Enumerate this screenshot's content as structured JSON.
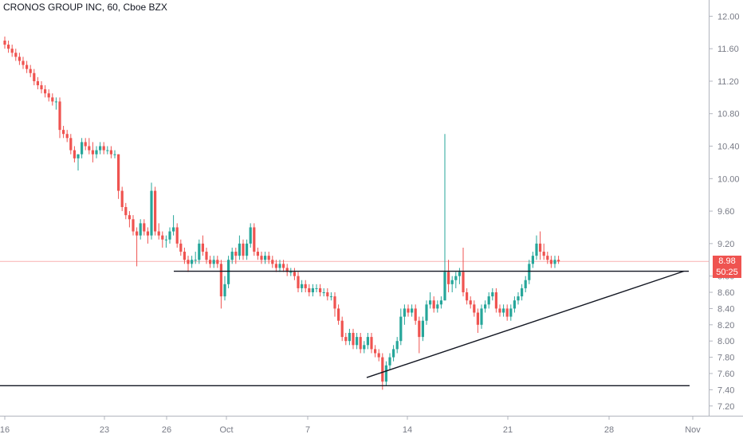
{
  "title": "CRONOS GROUP INC, 60, Cboe BZX",
  "last_price_label": "8.98",
  "countdown_label": "50:25",
  "colors": {
    "up": "#26a69a",
    "down": "#ef5350",
    "line": "#131722",
    "axis": "#787b86"
  },
  "chart_data": {
    "type": "candlestick",
    "ylim": [
      7.08,
      12.2
    ],
    "y_ticks": [
      12.0,
      11.6,
      11.2,
      10.8,
      10.4,
      10.0,
      9.6,
      9.2,
      8.8,
      8.6,
      8.4,
      8.2,
      8.0,
      7.8,
      7.6,
      7.4,
      7.2
    ],
    "y_tick_labels": [
      "12.00",
      "11.60",
      "11.20",
      "10.80",
      "10.40",
      "10.00",
      "9.60",
      "9.20",
      "8.80",
      "8.60",
      "8.40",
      "8.20",
      "8.00",
      "7.80",
      "7.60",
      "7.40",
      "7.20"
    ],
    "x_ticks": [
      "16",
      "23",
      "26",
      "Oct",
      "7",
      "14",
      "21",
      "28",
      "Nov"
    ],
    "last_price": 8.98,
    "horizontal_lines": [
      8.86,
      7.45
    ],
    "trend_line": {
      "from": {
        "bar": 92,
        "price": 7.55
      },
      "to": {
        "bar": 171,
        "price": 8.86
      }
    },
    "candles": [
      [
        11.7,
        11.75,
        11.6,
        11.65
      ],
      [
        11.65,
        11.7,
        11.55,
        11.6
      ],
      [
        11.6,
        11.65,
        11.5,
        11.55
      ],
      [
        11.55,
        11.6,
        11.45,
        11.5
      ],
      [
        11.5,
        11.55,
        11.4,
        11.45
      ],
      [
        11.45,
        11.5,
        11.35,
        11.4
      ],
      [
        11.4,
        11.45,
        11.3,
        11.35
      ],
      [
        11.35,
        11.4,
        11.25,
        11.3
      ],
      [
        11.3,
        11.35,
        11.15,
        11.2
      ],
      [
        11.2,
        11.25,
        11.1,
        11.15
      ],
      [
        11.15,
        11.2,
        11.05,
        11.1
      ],
      [
        11.1,
        11.15,
        11.0,
        11.05
      ],
      [
        11.05,
        11.1,
        10.95,
        11.0
      ],
      [
        11.0,
        11.05,
        10.9,
        10.95
      ],
      [
        10.95,
        11.0,
        10.85,
        10.95
      ],
      [
        10.95,
        11.0,
        10.5,
        10.6
      ],
      [
        10.6,
        10.65,
        10.5,
        10.55
      ],
      [
        10.55,
        10.6,
        10.45,
        10.5
      ],
      [
        10.5,
        10.55,
        10.3,
        10.35
      ],
      [
        10.35,
        10.4,
        10.2,
        10.25
      ],
      [
        10.25,
        10.3,
        10.1,
        10.3
      ],
      [
        10.3,
        10.5,
        10.25,
        10.45
      ],
      [
        10.45,
        10.5,
        10.35,
        10.4
      ],
      [
        10.4,
        10.5,
        10.3,
        10.35
      ],
      [
        10.35,
        10.45,
        10.2,
        10.3
      ],
      [
        10.3,
        10.4,
        10.25,
        10.35
      ],
      [
        10.35,
        10.45,
        10.3,
        10.4
      ],
      [
        10.4,
        10.45,
        10.3,
        10.35
      ],
      [
        10.35,
        10.4,
        10.3,
        10.35
      ],
      [
        10.35,
        10.4,
        10.25,
        10.3
      ],
      [
        10.3,
        10.35,
        10.25,
        10.3
      ],
      [
        10.3,
        10.3,
        9.75,
        9.85
      ],
      [
        9.85,
        9.9,
        9.6,
        9.65
      ],
      [
        9.65,
        9.7,
        9.5,
        9.55
      ],
      [
        9.55,
        9.6,
        9.4,
        9.5
      ],
      [
        9.5,
        9.55,
        9.3,
        9.35
      ],
      [
        9.35,
        9.4,
        8.92,
        9.3
      ],
      [
        9.3,
        9.5,
        9.25,
        9.45
      ],
      [
        9.45,
        9.5,
        9.3,
        9.35
      ],
      [
        9.35,
        9.4,
        9.2,
        9.3
      ],
      [
        9.3,
        9.95,
        9.25,
        9.85
      ],
      [
        9.85,
        9.9,
        9.3,
        9.35
      ],
      [
        9.35,
        9.45,
        9.25,
        9.3
      ],
      [
        9.3,
        9.35,
        9.15,
        9.25
      ],
      [
        9.25,
        9.3,
        9.15,
        9.25
      ],
      [
        9.25,
        9.4,
        9.2,
        9.35
      ],
      [
        9.35,
        9.55,
        9.3,
        9.4
      ],
      [
        9.4,
        9.45,
        9.15,
        9.2
      ],
      [
        9.2,
        9.25,
        9.05,
        9.1
      ],
      [
        9.1,
        9.15,
        8.95,
        9.0
      ],
      [
        9.0,
        9.05,
        8.85,
        8.95
      ],
      [
        8.95,
        9.05,
        8.9,
        9.0
      ],
      [
        9.0,
        9.1,
        8.95,
        9.0
      ],
      [
        9.0,
        9.25,
        8.95,
        9.2
      ],
      [
        9.2,
        9.3,
        9.05,
        9.1
      ],
      [
        9.1,
        9.15,
        8.95,
        9.0
      ],
      [
        9.0,
        9.05,
        8.9,
        8.95
      ],
      [
        8.95,
        9.05,
        8.9,
        9.0
      ],
      [
        9.0,
        9.05,
        8.9,
        8.95
      ],
      [
        8.95,
        9.0,
        8.4,
        8.55
      ],
      [
        8.55,
        8.8,
        8.5,
        8.7
      ],
      [
        8.7,
        9.05,
        8.65,
        9.0
      ],
      [
        9.0,
        9.15,
        8.95,
        9.1
      ],
      [
        9.1,
        9.15,
        8.95,
        9.05
      ],
      [
        9.05,
        9.3,
        9.0,
        9.2
      ],
      [
        9.2,
        9.25,
        9.0,
        9.05
      ],
      [
        9.05,
        9.25,
        9.0,
        9.2
      ],
      [
        9.2,
        9.45,
        9.15,
        9.4
      ],
      [
        9.4,
        9.45,
        9.05,
        9.1
      ],
      [
        9.1,
        9.15,
        9.0,
        9.05
      ],
      [
        9.05,
        9.1,
        8.95,
        9.0
      ],
      [
        9.0,
        9.1,
        8.95,
        9.05
      ],
      [
        9.05,
        9.1,
        8.95,
        9.0
      ],
      [
        9.0,
        9.05,
        8.9,
        8.95
      ],
      [
        8.95,
        9.0,
        8.85,
        8.9
      ],
      [
        8.9,
        9.0,
        8.85,
        8.95
      ],
      [
        8.95,
        9.0,
        8.85,
        8.9
      ],
      [
        8.9,
        8.95,
        8.8,
        8.85
      ],
      [
        8.85,
        8.9,
        8.8,
        8.85
      ],
      [
        8.85,
        8.9,
        8.75,
        8.8
      ],
      [
        8.8,
        8.85,
        8.6,
        8.65
      ],
      [
        8.65,
        8.75,
        8.6,
        8.7
      ],
      [
        8.7,
        8.75,
        8.6,
        8.65
      ],
      [
        8.65,
        8.7,
        8.55,
        8.6
      ],
      [
        8.6,
        8.7,
        8.55,
        8.65
      ],
      [
        8.65,
        8.7,
        8.6,
        8.65
      ],
      [
        8.65,
        8.7,
        8.55,
        8.6
      ],
      [
        8.6,
        8.65,
        8.55,
        8.6
      ],
      [
        8.6,
        8.65,
        8.5,
        8.55
      ],
      [
        8.55,
        8.6,
        8.5,
        8.55
      ],
      [
        8.55,
        8.6,
        8.3,
        8.4
      ],
      [
        8.4,
        8.45,
        8.2,
        8.25
      ],
      [
        8.25,
        8.3,
        8.0,
        8.05
      ],
      [
        8.05,
        8.1,
        7.95,
        8.0
      ],
      [
        8.0,
        8.15,
        7.95,
        8.1
      ],
      [
        8.1,
        8.15,
        7.9,
        7.95
      ],
      [
        7.95,
        8.1,
        7.9,
        8.05
      ],
      [
        8.05,
        8.1,
        7.85,
        7.9
      ],
      [
        7.9,
        8.0,
        7.85,
        7.95
      ],
      [
        7.95,
        8.1,
        7.9,
        8.05
      ],
      [
        8.05,
        8.1,
        7.85,
        7.9
      ],
      [
        7.9,
        7.95,
        7.8,
        7.85
      ],
      [
        7.85,
        7.9,
        7.75,
        7.8
      ],
      [
        7.8,
        7.85,
        7.4,
        7.5
      ],
      [
        7.5,
        7.75,
        7.45,
        7.7
      ],
      [
        7.7,
        7.85,
        7.65,
        7.8
      ],
      [
        7.8,
        7.95,
        7.75,
        7.9
      ],
      [
        7.9,
        8.05,
        7.85,
        8.0
      ],
      [
        8.0,
        8.4,
        7.95,
        8.3
      ],
      [
        8.3,
        8.45,
        8.2,
        8.4
      ],
      [
        8.4,
        8.45,
        8.3,
        8.35
      ],
      [
        8.35,
        8.45,
        8.3,
        8.4
      ],
      [
        8.4,
        8.45,
        8.2,
        8.25
      ],
      [
        8.25,
        8.3,
        7.85,
        8.05
      ],
      [
        8.05,
        8.3,
        8.0,
        8.25
      ],
      [
        8.25,
        8.5,
        8.2,
        8.45
      ],
      [
        8.45,
        8.6,
        8.4,
        8.5
      ],
      [
        8.5,
        8.55,
        8.35,
        8.4
      ],
      [
        8.4,
        8.5,
        8.35,
        8.45
      ],
      [
        8.45,
        8.55,
        8.4,
        8.5
      ],
      [
        8.5,
        10.55,
        8.5,
        8.85
      ],
      [
        8.85,
        9.0,
        8.6,
        8.7
      ],
      [
        8.7,
        8.8,
        8.6,
        8.75
      ],
      [
        8.75,
        8.85,
        8.65,
        8.8
      ],
      [
        8.8,
        8.9,
        8.7,
        8.85
      ],
      [
        8.85,
        9.15,
        8.55,
        8.6
      ],
      [
        8.6,
        8.65,
        8.45,
        8.5
      ],
      [
        8.5,
        8.55,
        8.4,
        8.45
      ],
      [
        8.45,
        8.5,
        8.3,
        8.35
      ],
      [
        8.35,
        8.4,
        8.1,
        8.2
      ],
      [
        8.2,
        8.45,
        8.15,
        8.4
      ],
      [
        8.4,
        8.5,
        8.35,
        8.45
      ],
      [
        8.45,
        8.6,
        8.4,
        8.55
      ],
      [
        8.55,
        8.65,
        8.5,
        8.6
      ],
      [
        8.6,
        8.65,
        8.35,
        8.4
      ],
      [
        8.4,
        8.45,
        8.3,
        8.35
      ],
      [
        8.35,
        8.45,
        8.3,
        8.4
      ],
      [
        8.4,
        8.45,
        8.25,
        8.3
      ],
      [
        8.3,
        8.45,
        8.25,
        8.4
      ],
      [
        8.4,
        8.55,
        8.35,
        8.5
      ],
      [
        8.5,
        8.6,
        8.45,
        8.55
      ],
      [
        8.55,
        8.7,
        8.5,
        8.65
      ],
      [
        8.65,
        8.8,
        8.6,
        8.75
      ],
      [
        8.75,
        9.0,
        8.7,
        8.95
      ],
      [
        8.95,
        9.1,
        8.9,
        9.05
      ],
      [
        9.05,
        9.3,
        9.0,
        9.2
      ],
      [
        9.2,
        9.35,
        9.0,
        9.1
      ],
      [
        9.1,
        9.2,
        9.0,
        9.05
      ],
      [
        9.05,
        9.1,
        8.95,
        9.0
      ],
      [
        9.0,
        9.05,
        8.9,
        8.95
      ],
      [
        8.95,
        9.05,
        8.9,
        9.0
      ],
      [
        9.0,
        9.05,
        8.95,
        8.98
      ]
    ]
  }
}
